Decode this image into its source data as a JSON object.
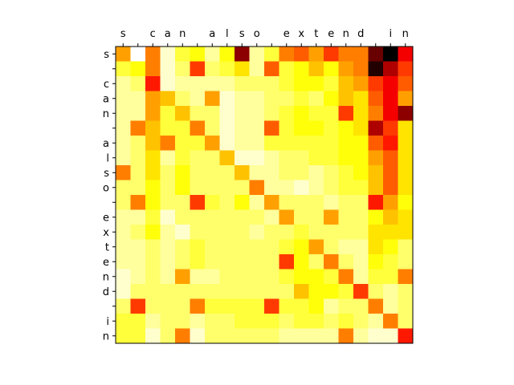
{
  "chart_data": {
    "type": "heatmap",
    "title": "",
    "xlabel": "",
    "ylabel": "",
    "x_ticks_position": "top",
    "colormap": "hot_r",
    "value_range": [
      0,
      1
    ],
    "colorbar": false,
    "grid": false,
    "x_tokens": [
      "s",
      " ",
      "c",
      "a",
      "n",
      " ",
      "a",
      "l",
      "s",
      "o",
      " ",
      "e",
      "x",
      "t",
      "e",
      "n",
      "d",
      " ",
      "i",
      "n"
    ],
    "y_tokens": [
      "s",
      " ",
      "c",
      "a",
      "n",
      " ",
      "a",
      "l",
      "s",
      "o",
      " ",
      "e",
      "x",
      "t",
      "e",
      "n",
      "d",
      " ",
      "i",
      "n"
    ],
    "values": [
      [
        0.4,
        0.0,
        0.45,
        0.05,
        0.2,
        0.25,
        0.1,
        0.25,
        0.8,
        0.1,
        0.2,
        0.45,
        0.5,
        0.4,
        0.55,
        0.45,
        0.45,
        0.85,
        1.0,
        0.65
      ],
      [
        0.2,
        0.25,
        0.45,
        0.05,
        0.15,
        0.55,
        0.15,
        0.2,
        0.3,
        0.1,
        0.5,
        0.2,
        0.25,
        0.35,
        0.25,
        0.4,
        0.45,
        0.95,
        0.75,
        0.55
      ],
      [
        0.1,
        0.15,
        0.6,
        0.05,
        0.1,
        0.1,
        0.1,
        0.1,
        0.15,
        0.15,
        0.15,
        0.2,
        0.25,
        0.25,
        0.2,
        0.35,
        0.4,
        0.55,
        0.65,
        0.5
      ],
      [
        0.1,
        0.1,
        0.4,
        0.35,
        0.15,
        0.1,
        0.4,
        0.05,
        0.1,
        0.1,
        0.15,
        0.15,
        0.2,
        0.15,
        0.25,
        0.35,
        0.3,
        0.5,
        0.65,
        0.4
      ],
      [
        0.1,
        0.1,
        0.4,
        0.2,
        0.35,
        0.15,
        0.15,
        0.05,
        0.1,
        0.1,
        0.15,
        0.2,
        0.25,
        0.2,
        0.2,
        0.55,
        0.3,
        0.45,
        0.65,
        0.8
      ],
      [
        0.1,
        0.45,
        0.35,
        0.2,
        0.2,
        0.45,
        0.15,
        0.05,
        0.1,
        0.1,
        0.5,
        0.2,
        0.25,
        0.25,
        0.2,
        0.25,
        0.3,
        0.75,
        0.55,
        0.3
      ],
      [
        0.1,
        0.15,
        0.35,
        0.45,
        0.2,
        0.2,
        0.4,
        0.05,
        0.1,
        0.1,
        0.2,
        0.2,
        0.2,
        0.2,
        0.2,
        0.25,
        0.25,
        0.5,
        0.6,
        0.3
      ],
      [
        0.1,
        0.15,
        0.3,
        0.1,
        0.2,
        0.15,
        0.15,
        0.35,
        0.05,
        0.05,
        0.1,
        0.15,
        0.15,
        0.2,
        0.2,
        0.25,
        0.25,
        0.4,
        0.5,
        0.3
      ],
      [
        0.45,
        0.15,
        0.3,
        0.15,
        0.25,
        0.15,
        0.15,
        0.15,
        0.35,
        0.1,
        0.1,
        0.15,
        0.15,
        0.1,
        0.15,
        0.2,
        0.25,
        0.35,
        0.5,
        0.3
      ],
      [
        0.15,
        0.15,
        0.25,
        0.15,
        0.25,
        0.15,
        0.15,
        0.15,
        0.15,
        0.45,
        0.1,
        0.1,
        0.05,
        0.1,
        0.15,
        0.2,
        0.2,
        0.35,
        0.5,
        0.3
      ],
      [
        0.15,
        0.45,
        0.25,
        0.15,
        0.15,
        0.55,
        0.2,
        0.15,
        0.25,
        0.1,
        0.4,
        0.15,
        0.15,
        0.15,
        0.1,
        0.15,
        0.15,
        0.6,
        0.4,
        0.25
      ],
      [
        0.1,
        0.1,
        0.2,
        0.05,
        0.15,
        0.15,
        0.15,
        0.15,
        0.15,
        0.15,
        0.1,
        0.4,
        0.15,
        0.15,
        0.4,
        0.15,
        0.15,
        0.25,
        0.35,
        0.3
      ],
      [
        0.1,
        0.15,
        0.25,
        0.1,
        0.05,
        0.15,
        0.15,
        0.15,
        0.15,
        0.1,
        0.15,
        0.15,
        0.2,
        0.15,
        0.15,
        0.15,
        0.15,
        0.3,
        0.3,
        0.3
      ],
      [
        0.1,
        0.1,
        0.15,
        0.1,
        0.15,
        0.2,
        0.15,
        0.15,
        0.15,
        0.15,
        0.15,
        0.2,
        0.25,
        0.4,
        0.15,
        0.1,
        0.1,
        0.3,
        0.25,
        0.15
      ],
      [
        0.1,
        0.1,
        0.15,
        0.1,
        0.15,
        0.2,
        0.15,
        0.15,
        0.15,
        0.15,
        0.15,
        0.55,
        0.25,
        0.15,
        0.45,
        0.15,
        0.1,
        0.25,
        0.2,
        0.15
      ],
      [
        0.05,
        0.1,
        0.15,
        0.1,
        0.4,
        0.1,
        0.1,
        0.15,
        0.15,
        0.15,
        0.15,
        0.2,
        0.25,
        0.25,
        0.2,
        0.45,
        0.1,
        0.2,
        0.2,
        0.45
      ],
      [
        0.05,
        0.15,
        0.15,
        0.15,
        0.15,
        0.15,
        0.15,
        0.15,
        0.15,
        0.15,
        0.15,
        0.15,
        0.35,
        0.25,
        0.25,
        0.2,
        0.55,
        0.15,
        0.1,
        0.15
      ],
      [
        0.15,
        0.55,
        0.15,
        0.15,
        0.15,
        0.45,
        0.2,
        0.2,
        0.2,
        0.2,
        0.55,
        0.2,
        0.2,
        0.25,
        0.1,
        0.15,
        0.15,
        0.45,
        0.1,
        0.15
      ],
      [
        0.2,
        0.2,
        0.1,
        0.15,
        0.15,
        0.1,
        0.15,
        0.15,
        0.2,
        0.2,
        0.2,
        0.15,
        0.2,
        0.2,
        0.15,
        0.2,
        0.15,
        0.1,
        0.45,
        0.15
      ],
      [
        0.2,
        0.2,
        0.05,
        0.15,
        0.45,
        0.05,
        0.15,
        0.15,
        0.15,
        0.15,
        0.15,
        0.1,
        0.1,
        0.1,
        0.1,
        0.45,
        0.1,
        0.05,
        0.05,
        0.6
      ]
    ]
  }
}
